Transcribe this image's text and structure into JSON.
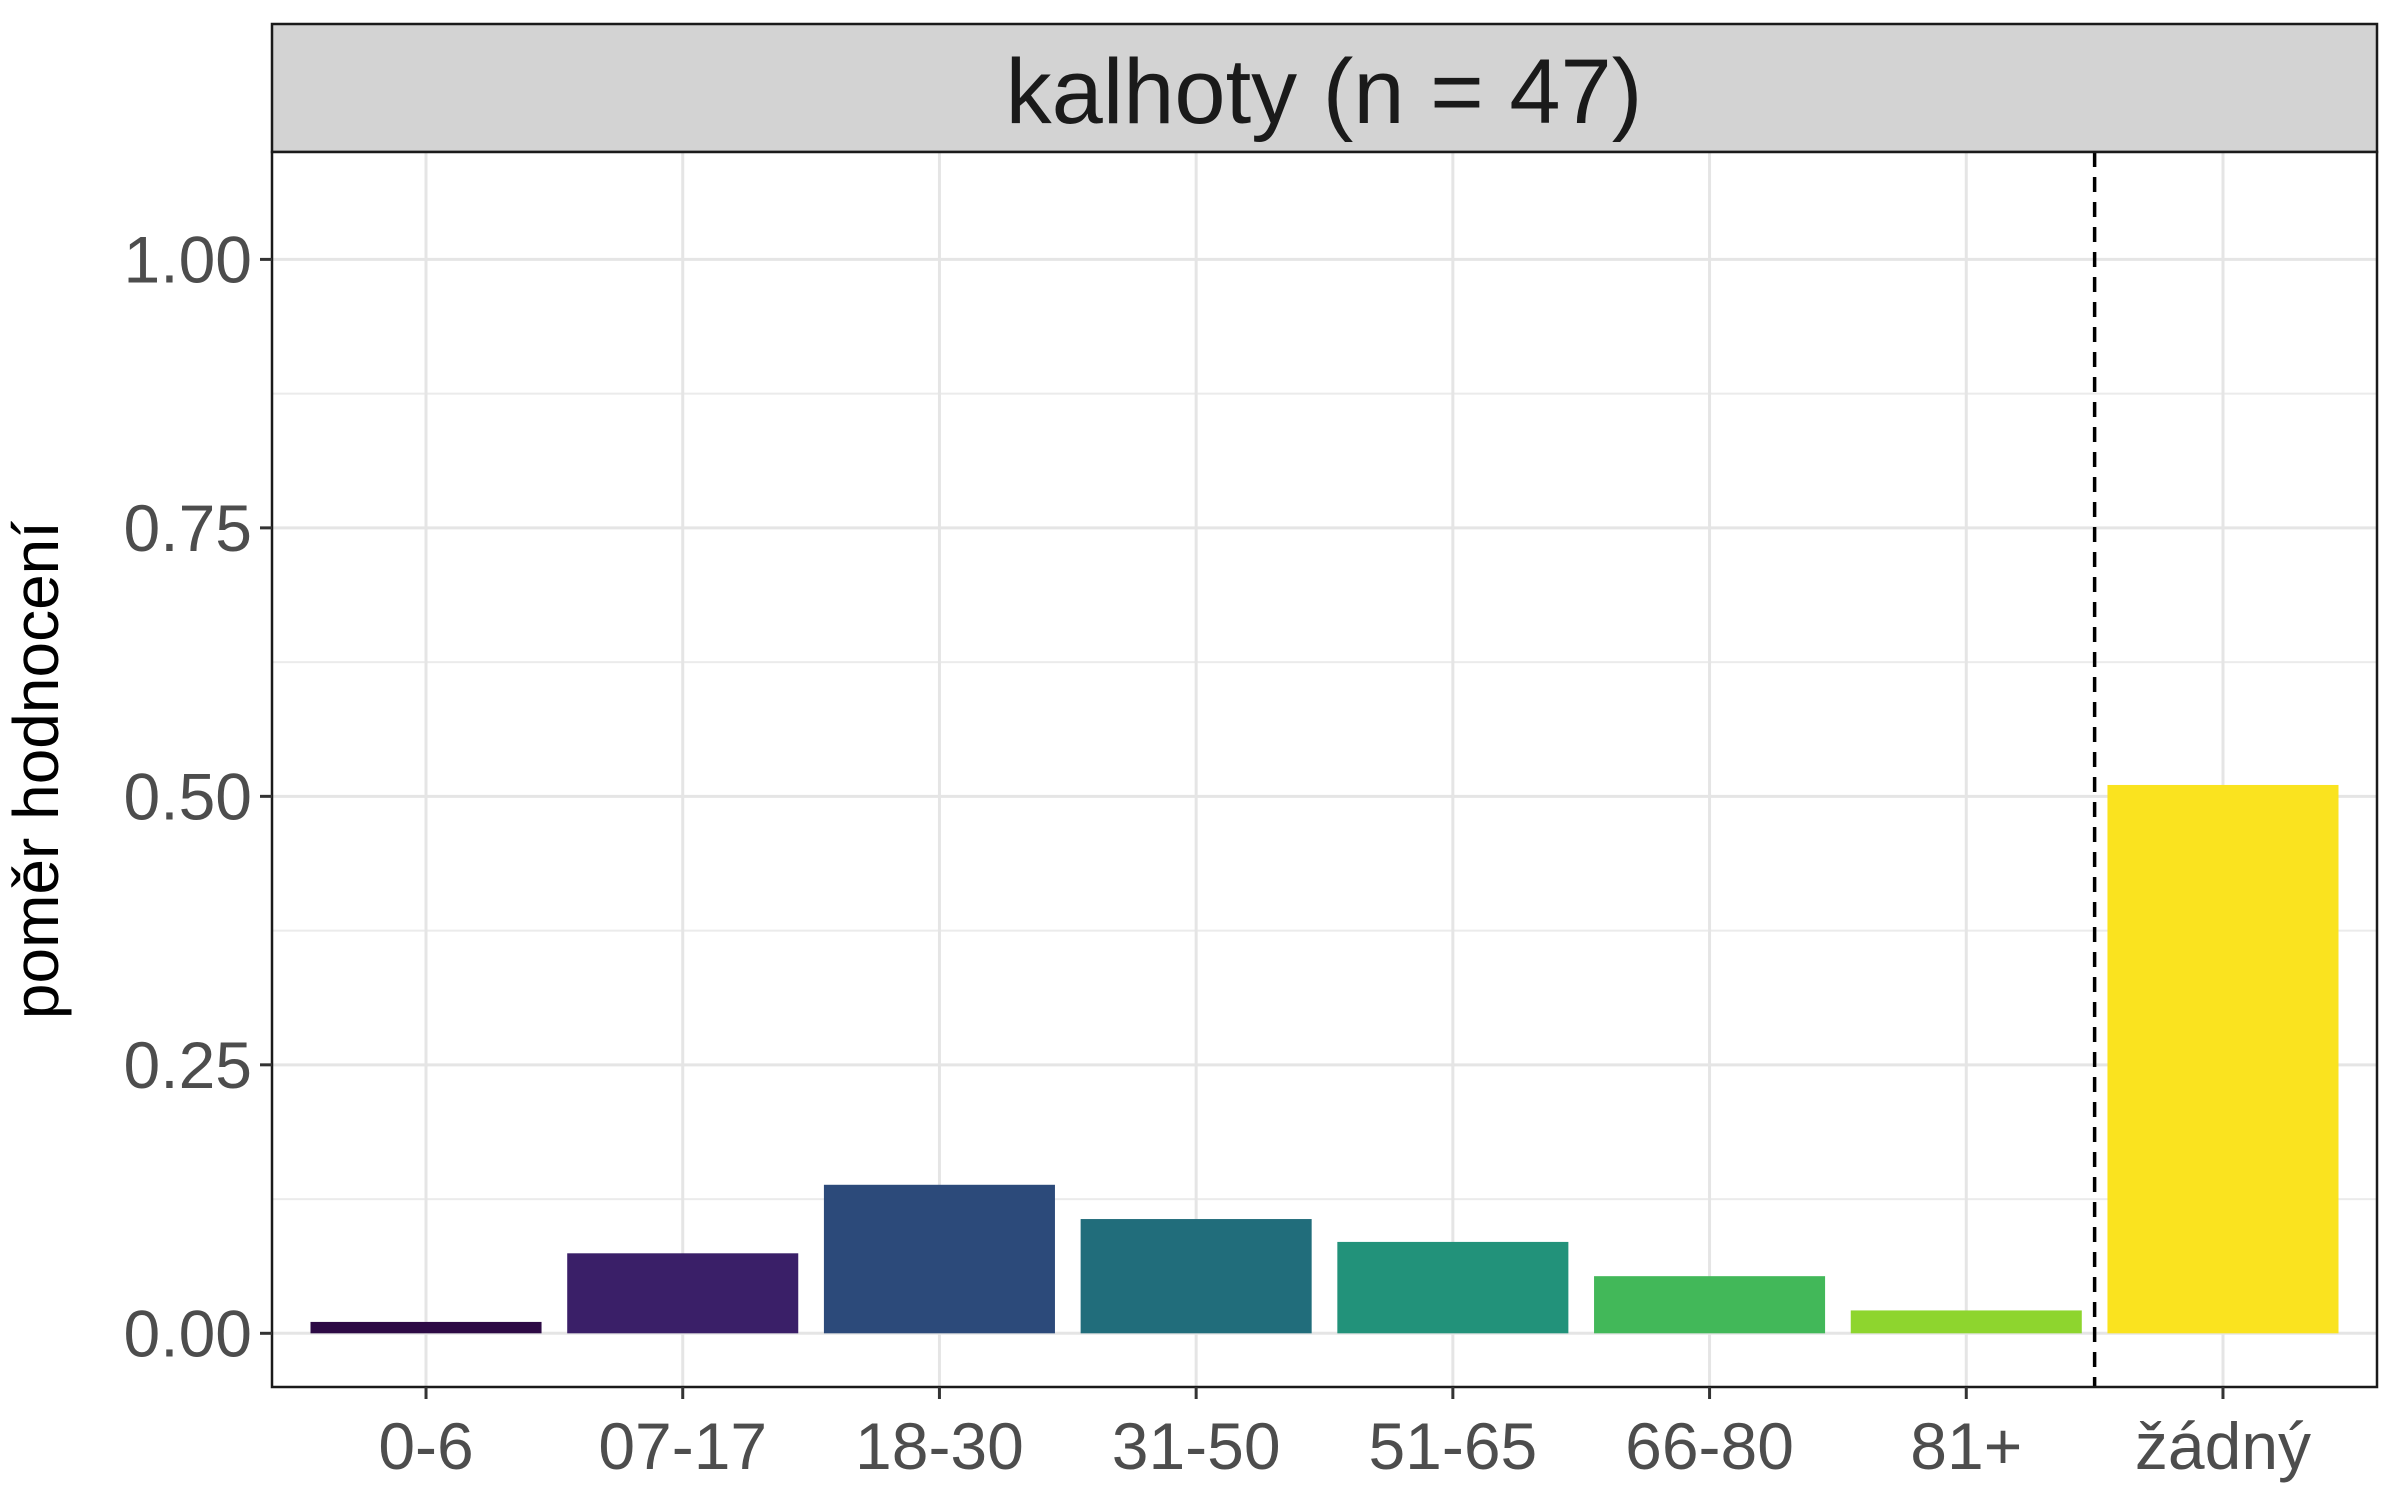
{
  "chart_data": {
    "type": "bar",
    "title": "kalhoty (n = 47)",
    "xlabel": "",
    "ylabel": "poměr hodnocení",
    "categories": [
      "0-6",
      "07-17",
      "18-30",
      "31-50",
      "51-65",
      "66-80",
      "81+",
      "žádný"
    ],
    "values": [
      0.0106,
      0.0745,
      0.1383,
      0.1064,
      0.0851,
      0.0532,
      0.0213,
      0.5106
    ],
    "colors": [
      "#2d0a45",
      "#3a1f68",
      "#2c4a7a",
      "#216d7b",
      "#22927a",
      "#42b859",
      "#8ed52e",
      "#fae31f"
    ],
    "ylim": [
      -0.05,
      1.1
    ],
    "yticks": [
      "0.00",
      "0.25",
      "0.50",
      "0.75",
      "1.00"
    ],
    "ytick_values": [
      0,
      0.25,
      0.5,
      0.75,
      1.0
    ],
    "grid": true,
    "legend": "none",
    "reference_line": {
      "after_category": "81+",
      "style": "dashed"
    }
  }
}
